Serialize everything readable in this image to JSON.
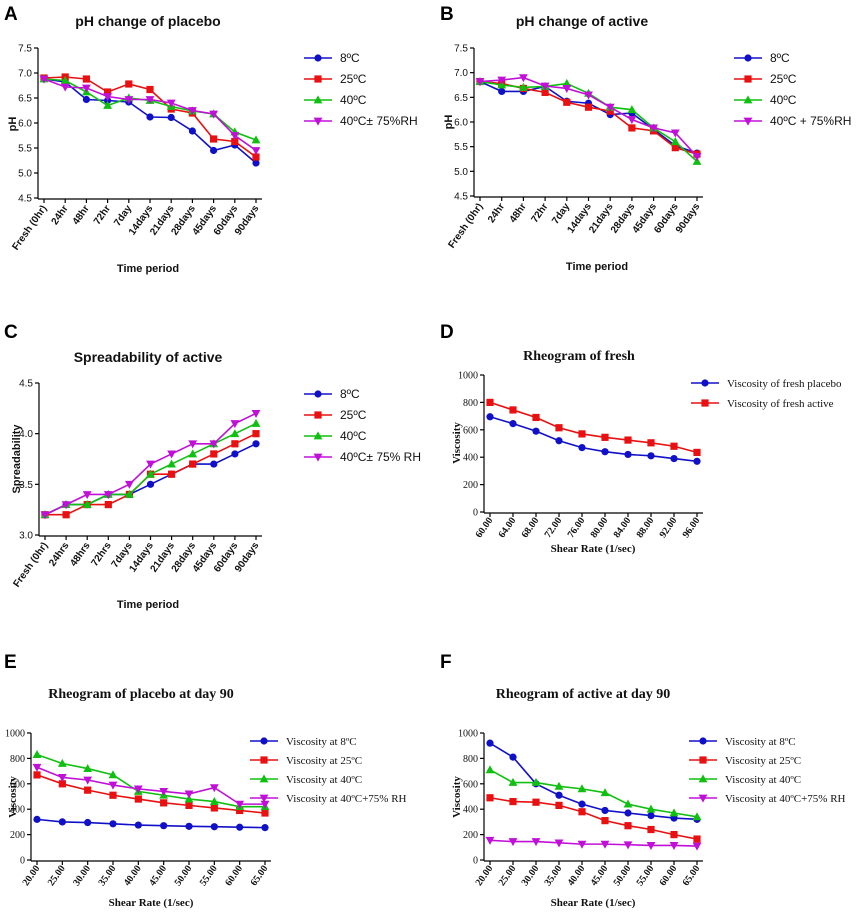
{
  "chart_data": [
    {
      "panel": "A",
      "type": "line",
      "title": "pH change of placebo",
      "xlabel": "Time period",
      "ylabel": "pH",
      "ylim": [
        4.5,
        7.5
      ],
      "yticks": [
        "4.5",
        "5.0",
        "5.5",
        "6.0",
        "6.5",
        "7.0",
        "7.5"
      ],
      "categories": [
        "Fresh (0hr)",
        "24hr",
        "48hr",
        "72hr",
        "7day",
        "14days",
        "21days",
        "28days",
        "45days",
        "60days",
        "90days"
      ],
      "series": [
        {
          "name": "8ºC",
          "color": "#1010c8",
          "marker": "circle",
          "values": [
            6.88,
            6.82,
            6.47,
            6.45,
            6.42,
            6.12,
            6.11,
            5.84,
            5.45,
            5.56,
            5.2
          ]
        },
        {
          "name": "25ºC",
          "color": "#e81010",
          "marker": "square",
          "values": [
            6.9,
            6.92,
            6.88,
            6.62,
            6.78,
            6.67,
            6.28,
            6.2,
            5.68,
            5.63,
            5.32
          ]
        },
        {
          "name": "40ºC",
          "color": "#10c010",
          "marker": "triangle-up",
          "values": [
            6.88,
            6.85,
            6.62,
            6.35,
            6.5,
            6.45,
            6.33,
            6.24,
            6.18,
            5.82,
            5.66
          ]
        },
        {
          "name": "40ºC± 75%RH",
          "color": "#c010d8",
          "marker": "triangle-down",
          "values": [
            6.88,
            6.72,
            6.7,
            6.53,
            6.47,
            6.47,
            6.4,
            6.25,
            6.18,
            5.75,
            5.45
          ]
        }
      ]
    },
    {
      "panel": "B",
      "type": "line",
      "title": "pH change of active",
      "xlabel": "Time period",
      "ylabel": "pH",
      "ylim": [
        4.5,
        7.5
      ],
      "yticks": [
        "4.5",
        "5.0",
        "5.5",
        "6.0",
        "6.5",
        "7.0",
        "7.5"
      ],
      "categories": [
        "Fresh (0hr)",
        "24hr",
        "48hr",
        "72hr",
        "7day",
        "14days",
        "21days",
        "28days",
        "45days",
        "60days",
        "90days"
      ],
      "series": [
        {
          "name": "8ºC",
          "color": "#1010c8",
          "marker": "circle",
          "values": [
            6.82,
            6.62,
            6.62,
            6.72,
            6.42,
            6.38,
            6.15,
            6.18,
            5.85,
            5.52,
            5.37
          ]
        },
        {
          "name": "25ºC",
          "color": "#e81010",
          "marker": "square",
          "values": [
            6.82,
            6.78,
            6.68,
            6.6,
            6.4,
            6.3,
            6.22,
            5.88,
            5.82,
            5.48,
            5.35
          ]
        },
        {
          "name": "40ºC",
          "color": "#10c010",
          "marker": "triangle-up",
          "values": [
            6.82,
            6.75,
            6.7,
            6.72,
            6.78,
            6.58,
            6.3,
            6.25,
            5.88,
            5.6,
            5.2
          ]
        },
        {
          "name": "40ºC + 75%RH",
          "color": "#c010d8",
          "marker": "triangle-down",
          "values": [
            6.82,
            6.85,
            6.9,
            6.73,
            6.68,
            6.55,
            6.3,
            6.05,
            5.88,
            5.78,
            5.3
          ]
        }
      ]
    },
    {
      "panel": "C",
      "type": "line",
      "title": "Spreadability of active",
      "xlabel": "Time period",
      "ylabel": "Spreadability",
      "ylim": [
        3.0,
        4.5
      ],
      "yticks": [
        "3.0",
        "3.5",
        "4.0",
        "4.5"
      ],
      "categories": [
        "Fresh (0hr)",
        "24hrs",
        "48hrs",
        "72hrs",
        "7days",
        "14days",
        "21days",
        "28days",
        "45days",
        "60days",
        "90days"
      ],
      "series": [
        {
          "name": "8ºC",
          "color": "#1010c8",
          "marker": "circle",
          "values": [
            3.2,
            3.3,
            3.3,
            3.4,
            3.4,
            3.5,
            3.6,
            3.7,
            3.7,
            3.8,
            3.9
          ]
        },
        {
          "name": "25ºC",
          "color": "#e81010",
          "marker": "square",
          "values": [
            3.2,
            3.2,
            3.3,
            3.3,
            3.4,
            3.6,
            3.6,
            3.7,
            3.8,
            3.9,
            4.0
          ]
        },
        {
          "name": "40ºC",
          "color": "#10c010",
          "marker": "triangle-up",
          "values": [
            3.2,
            3.3,
            3.3,
            3.4,
            3.4,
            3.6,
            3.7,
            3.8,
            3.9,
            4.0,
            4.1
          ]
        },
        {
          "name": "40ºC± 75% RH",
          "color": "#c010d8",
          "marker": "triangle-down",
          "values": [
            3.2,
            3.3,
            3.4,
            3.4,
            3.5,
            3.7,
            3.8,
            3.9,
            3.9,
            4.1,
            4.2
          ]
        }
      ]
    },
    {
      "panel": "D",
      "type": "line",
      "title": "Rheogram of fresh",
      "xlabel": "Shear Rate (1/sec)",
      "ylabel": "Viscosity",
      "ylim": [
        0,
        1000
      ],
      "yticks": [
        "0",
        "200",
        "400",
        "600",
        "800",
        "1000"
      ],
      "categories": [
        "60.00",
        "64.00",
        "68.00",
        "72.00",
        "76.00",
        "80.00",
        "84.00",
        "88.00",
        "92.00",
        "96.00"
      ],
      "series": [
        {
          "name": "Viscosity of fresh placebo",
          "color": "#1010c8",
          "marker": "circle",
          "values": [
            695,
            645,
            590,
            520,
            470,
            440,
            420,
            410,
            390,
            370
          ]
        },
        {
          "name": "Viscosity of fresh active",
          "color": "#e81010",
          "marker": "square",
          "values": [
            800,
            745,
            690,
            615,
            570,
            545,
            525,
            505,
            480,
            435
          ]
        }
      ]
    },
    {
      "panel": "E",
      "type": "line",
      "title": "Rheogram of placebo at day 90",
      "xlabel": "Shear Rate (1/sec)",
      "ylabel": "Viscosity",
      "ylim": [
        0,
        1000
      ],
      "yticks": [
        "0",
        "200",
        "400",
        "600",
        "800",
        "1000"
      ],
      "categories": [
        "20.00",
        "25.00",
        "30.00",
        "35.00",
        "40.00",
        "45.00",
        "50.00",
        "55.00",
        "60.00",
        "65.00"
      ],
      "series": [
        {
          "name": "Viscosity at 8ºC",
          "color": "#1010c8",
          "marker": "circle",
          "values": [
            320,
            300,
            295,
            285,
            275,
            270,
            265,
            262,
            258,
            255
          ]
        },
        {
          "name": "Viscosity at 25ºC",
          "color": "#e81010",
          "marker": "square",
          "values": [
            670,
            600,
            550,
            510,
            480,
            450,
            430,
            410,
            390,
            370
          ]
        },
        {
          "name": "Viscosity at 40ºC",
          "color": "#10c010",
          "marker": "triangle-up",
          "values": [
            830,
            760,
            720,
            670,
            540,
            510,
            480,
            460,
            420,
            420
          ]
        },
        {
          "name": "Viscosity at 40ºC+75% RH",
          "color": "#c010d8",
          "marker": "triangle-down",
          "values": [
            730,
            650,
            630,
            590,
            560,
            540,
            520,
            570,
            440,
            440
          ]
        }
      ]
    },
    {
      "panel": "F",
      "type": "line",
      "title": "Rheogram of active at day 90",
      "xlabel": "Shear Rate (1/sec)",
      "ylabel": "Viscosity",
      "ylim": [
        0,
        1000
      ],
      "yticks": [
        "0",
        "200",
        "400",
        "600",
        "800",
        "1000"
      ],
      "categories": [
        "20.00",
        "25.00",
        "30.00",
        "35.00",
        "40.00",
        "45.00",
        "50.00",
        "55.00",
        "60.00",
        "65.00"
      ],
      "series": [
        {
          "name": "Viscosity at 8ºC",
          "color": "#1010c8",
          "marker": "circle",
          "values": [
            920,
            810,
            600,
            510,
            440,
            390,
            370,
            350,
            330,
            320
          ]
        },
        {
          "name": "Viscosity at 25ºC",
          "color": "#e81010",
          "marker": "square",
          "values": [
            490,
            460,
            455,
            430,
            380,
            310,
            270,
            240,
            200,
            165
          ]
        },
        {
          "name": "Viscosity at 40ºC",
          "color": "#10c010",
          "marker": "triangle-up",
          "values": [
            710,
            610,
            610,
            580,
            560,
            530,
            440,
            400,
            370,
            340
          ]
        },
        {
          "name": "Viscosity at 40ºC+75% RH",
          "color": "#c010d8",
          "marker": "triangle-down",
          "values": [
            155,
            145,
            145,
            135,
            125,
            125,
            120,
            115,
            115,
            110
          ]
        }
      ]
    }
  ]
}
